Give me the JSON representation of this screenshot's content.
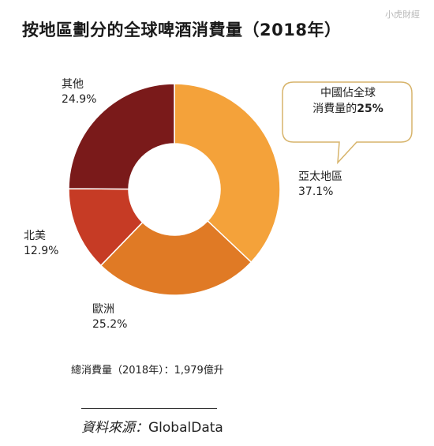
{
  "watermark": "小虎財經",
  "chart_data": {
    "type": "pie",
    "title": "按地區劃分的全球啤酒消費量（2018年）",
    "slices": [
      {
        "name": "亞太地區",
        "value": 37.1,
        "label": "37.1%",
        "color": "#F4A23A"
      },
      {
        "name": "歐洲",
        "value": 25.2,
        "label": "25.2%",
        "color": "#E07A25"
      },
      {
        "name": "北美",
        "value": 12.9,
        "label": "12.9%",
        "color": "#C63B25"
      },
      {
        "name": "其他",
        "value": 24.9,
        "label": "24.9%",
        "color": "#7A1A1A"
      }
    ],
    "callout": {
      "line1": "中國佔全球",
      "line2_prefix": "消費量的",
      "line2_emphasis": "25%"
    },
    "total": "總消費量（2018年）：1,979億升",
    "source_label": "資料來源：",
    "source_value": "GlobalData"
  }
}
